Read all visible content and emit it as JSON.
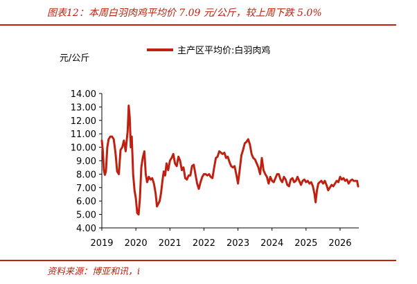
{
  "figure": {
    "title": "图表12：本周白羽肉鸡平均价 7.09 元/公斤，较上周下跌 5.0%",
    "source": "资料来源：博亚和讯，i"
  },
  "colors": {
    "accent": "#c0200f",
    "series": "#c0200f"
  },
  "chart_data": {
    "type": "line",
    "ylabel": "元/公斤",
    "ylim": [
      4.0,
      14.0
    ],
    "yticks": [
      "4.00",
      "5.00",
      "6.00",
      "7.00",
      "8.00",
      "9.00",
      "10.00",
      "11.00",
      "12.00",
      "13.00",
      "14.00"
    ],
    "xlim": [
      2019.0,
      2026.55
    ],
    "xticks": [
      "2019",
      "2020",
      "2021",
      "2022",
      "2023",
      "2024",
      "2025",
      "2026"
    ],
    "legend_position": "top-center",
    "grid": false,
    "series": [
      {
        "name": "主产区平均价:白羽肉鸡",
        "points": [
          [
            2019.0,
            10.5
          ],
          [
            2019.03,
            9.7
          ],
          [
            2019.06,
            8.3
          ],
          [
            2019.09,
            7.95
          ],
          [
            2019.12,
            8.2
          ],
          [
            2019.16,
            10.0
          ],
          [
            2019.2,
            10.6
          ],
          [
            2019.25,
            10.8
          ],
          [
            2019.3,
            10.8
          ],
          [
            2019.35,
            10.6
          ],
          [
            2019.4,
            9.6
          ],
          [
            2019.45,
            8.2
          ],
          [
            2019.5,
            8.0
          ],
          [
            2019.55,
            9.8
          ],
          [
            2019.6,
            10.0
          ],
          [
            2019.65,
            10.5
          ],
          [
            2019.7,
            9.7
          ],
          [
            2019.73,
            10.5
          ],
          [
            2019.76,
            11.2
          ],
          [
            2019.79,
            13.1
          ],
          [
            2019.82,
            12.2
          ],
          [
            2019.85,
            10.0
          ],
          [
            2019.88,
            10.8
          ],
          [
            2019.92,
            8.0
          ],
          [
            2019.96,
            6.8
          ],
          [
            2020.0,
            6.2
          ],
          [
            2020.04,
            5.1
          ],
          [
            2020.08,
            5.0
          ],
          [
            2020.12,
            6.2
          ],
          [
            2020.16,
            8.5
          ],
          [
            2020.2,
            9.2
          ],
          [
            2020.25,
            9.7
          ],
          [
            2020.29,
            8.0
          ],
          [
            2020.33,
            7.4
          ],
          [
            2020.38,
            7.8
          ],
          [
            2020.43,
            7.6
          ],
          [
            2020.48,
            7.7
          ],
          [
            2020.53,
            7.3
          ],
          [
            2020.58,
            6.6
          ],
          [
            2020.62,
            5.6
          ],
          [
            2020.66,
            5.8
          ],
          [
            2020.7,
            6.0
          ],
          [
            2020.74,
            6.6
          ],
          [
            2020.78,
            7.5
          ],
          [
            2020.82,
            8.2
          ],
          [
            2020.86,
            7.9
          ],
          [
            2020.9,
            8.8
          ],
          [
            2020.95,
            8.3
          ],
          [
            2021.0,
            9.0
          ],
          [
            2021.05,
            9.2
          ],
          [
            2021.1,
            9.5
          ],
          [
            2021.15,
            8.8
          ],
          [
            2021.2,
            8.6
          ],
          [
            2021.25,
            9.3
          ],
          [
            2021.3,
            9.0
          ],
          [
            2021.35,
            8.3
          ],
          [
            2021.4,
            8.5
          ],
          [
            2021.45,
            7.7
          ],
          [
            2021.5,
            7.6
          ],
          [
            2021.55,
            7.9
          ],
          [
            2021.6,
            7.9
          ],
          [
            2021.65,
            8.6
          ],
          [
            2021.7,
            8.7
          ],
          [
            2021.75,
            8.0
          ],
          [
            2021.8,
            7.3
          ],
          [
            2021.85,
            6.9
          ],
          [
            2021.9,
            7.4
          ],
          [
            2021.95,
            7.8
          ],
          [
            2022.0,
            8.0
          ],
          [
            2022.05,
            8.0
          ],
          [
            2022.1,
            7.9
          ],
          [
            2022.15,
            8.0
          ],
          [
            2022.2,
            7.8
          ],
          [
            2022.25,
            7.7
          ],
          [
            2022.3,
            8.5
          ],
          [
            2022.35,
            9.2
          ],
          [
            2022.4,
            9.3
          ],
          [
            2022.45,
            9.7
          ],
          [
            2022.5,
            9.6
          ],
          [
            2022.55,
            9.5
          ],
          [
            2022.6,
            9.6
          ],
          [
            2022.65,
            9.2
          ],
          [
            2022.7,
            9.3
          ],
          [
            2022.75,
            8.9
          ],
          [
            2022.8,
            8.6
          ],
          [
            2022.85,
            8.5
          ],
          [
            2022.9,
            8.6
          ],
          [
            2022.95,
            8.0
          ],
          [
            2023.0,
            7.3
          ],
          [
            2023.05,
            8.3
          ],
          [
            2023.1,
            9.4
          ],
          [
            2023.15,
            9.8
          ],
          [
            2023.2,
            10.3
          ],
          [
            2023.25,
            10.4
          ],
          [
            2023.3,
            10.6
          ],
          [
            2023.35,
            10.2
          ],
          [
            2023.4,
            9.5
          ],
          [
            2023.45,
            9.2
          ],
          [
            2023.5,
            9.1
          ],
          [
            2023.55,
            8.8
          ],
          [
            2023.6,
            8.5
          ],
          [
            2023.65,
            8.0
          ],
          [
            2023.7,
            9.2
          ],
          [
            2023.75,
            8.3
          ],
          [
            2023.8,
            8.0
          ],
          [
            2023.85,
            7.8
          ],
          [
            2023.9,
            7.3
          ],
          [
            2023.95,
            7.8
          ],
          [
            2024.0,
            7.5
          ],
          [
            2024.05,
            7.4
          ],
          [
            2024.1,
            7.7
          ],
          [
            2024.15,
            8.0
          ],
          [
            2024.2,
            8.0
          ],
          [
            2024.25,
            7.6
          ],
          [
            2024.3,
            7.4
          ],
          [
            2024.35,
            7.8
          ],
          [
            2024.4,
            7.6
          ],
          [
            2024.45,
            7.2
          ],
          [
            2024.5,
            7.1
          ],
          [
            2024.55,
            7.6
          ],
          [
            2024.6,
            7.7
          ],
          [
            2024.65,
            7.4
          ],
          [
            2024.7,
            7.5
          ],
          [
            2024.75,
            7.8
          ],
          [
            2024.8,
            7.5
          ],
          [
            2024.85,
            7.2
          ],
          [
            2024.9,
            7.5
          ],
          [
            2024.95,
            7.6
          ],
          [
            2025.0,
            7.4
          ],
          [
            2025.05,
            7.5
          ],
          [
            2025.1,
            7.3
          ],
          [
            2025.15,
            7.4
          ],
          [
            2025.2,
            7.1
          ],
          [
            2025.25,
            6.5
          ],
          [
            2025.28,
            5.9
          ],
          [
            2025.32,
            6.8
          ],
          [
            2025.36,
            7.3
          ],
          [
            2025.4,
            7.4
          ],
          [
            2025.45,
            7.5
          ],
          [
            2025.5,
            7.3
          ],
          [
            2025.55,
            7.5
          ],
          [
            2025.6,
            7.2
          ],
          [
            2025.65,
            6.8
          ],
          [
            2025.7,
            7.0
          ],
          [
            2025.75,
            7.2
          ],
          [
            2025.8,
            7.1
          ],
          [
            2025.85,
            7.3
          ],
          [
            2025.9,
            7.5
          ],
          [
            2025.95,
            7.4
          ],
          [
            2026.0,
            7.8
          ],
          [
            2026.05,
            7.6
          ],
          [
            2026.1,
            7.7
          ],
          [
            2026.15,
            7.5
          ],
          [
            2026.2,
            7.6
          ],
          [
            2026.25,
            7.3
          ],
          [
            2026.3,
            7.5
          ],
          [
            2026.35,
            7.6
          ],
          [
            2026.4,
            7.5
          ],
          [
            2026.45,
            7.5
          ],
          [
            2026.5,
            7.5
          ],
          [
            2026.53,
            7.09
          ]
        ]
      }
    ]
  }
}
